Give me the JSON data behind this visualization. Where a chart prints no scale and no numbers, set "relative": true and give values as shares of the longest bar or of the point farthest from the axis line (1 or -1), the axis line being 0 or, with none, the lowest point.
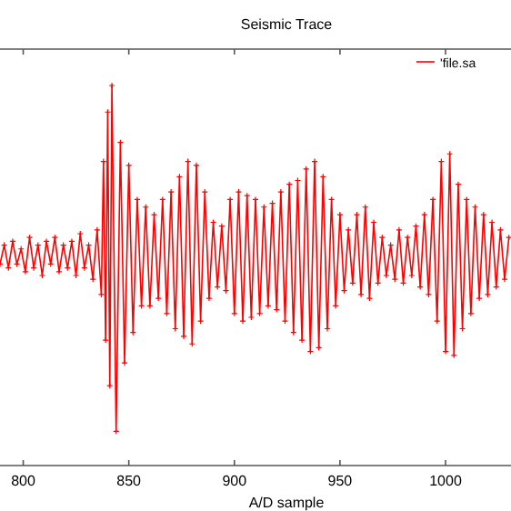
{
  "chart_data": {
    "type": "line",
    "title": "Seismic Trace",
    "xlabel": "A/D sample",
    "relative": true,
    "xlim": [
      789,
      1031
    ],
    "xticks": [
      800,
      850,
      900,
      950,
      1000
    ],
    "legend": "top right",
    "marker": "cross",
    "line_style": "solid",
    "grid": false,
    "tick_labels": "x",
    "series": [
      {
        "name": "'file.sa",
        "color": "#ff0000",
        "x": [
          789,
          791,
          793,
          795,
          797,
          799,
          801,
          803,
          805,
          807,
          809,
          811,
          813,
          815,
          817,
          819,
          821,
          823,
          825,
          827,
          829,
          831,
          833,
          835,
          837,
          838,
          839,
          840,
          841,
          842,
          844,
          846,
          848,
          850,
          852,
          854,
          856,
          858,
          860,
          862,
          864,
          866,
          868,
          870,
          872,
          874,
          876,
          878,
          880,
          882,
          884,
          886,
          888,
          890,
          892,
          894,
          896,
          898,
          900,
          902,
          904,
          906,
          908,
          910,
          912,
          914,
          916,
          918,
          920,
          922,
          924,
          926,
          928,
          930,
          932,
          934,
          936,
          938,
          940,
          942,
          944,
          946,
          948,
          950,
          952,
          954,
          956,
          958,
          960,
          962,
          964,
          966,
          968,
          970,
          972,
          974,
          976,
          978,
          980,
          982,
          984,
          986,
          988,
          990,
          992,
          994,
          996,
          998,
          1000,
          1002,
          1004,
          1006,
          1008,
          1010,
          1012,
          1014,
          1016,
          1018,
          1020,
          1022,
          1024,
          1026,
          1028,
          1030
        ],
        "values": [
          0.53,
          0.58,
          0.52,
          0.59,
          0.53,
          0.57,
          0.51,
          0.6,
          0.52,
          0.58,
          0.5,
          0.59,
          0.53,
          0.6,
          0.51,
          0.58,
          0.52,
          0.59,
          0.5,
          0.61,
          0.52,
          0.58,
          0.49,
          0.62,
          0.45,
          0.8,
          0.33,
          0.93,
          0.21,
          1.0,
          0.09,
          0.85,
          0.27,
          0.79,
          0.35,
          0.7,
          0.42,
          0.68,
          0.42,
          0.66,
          0.44,
          0.7,
          0.4,
          0.72,
          0.36,
          0.76,
          0.34,
          0.8,
          0.32,
          0.79,
          0.38,
          0.72,
          0.44,
          0.64,
          0.47,
          0.63,
          0.46,
          0.7,
          0.4,
          0.72,
          0.38,
          0.71,
          0.39,
          0.7,
          0.4,
          0.68,
          0.42,
          0.69,
          0.41,
          0.72,
          0.38,
          0.74,
          0.35,
          0.75,
          0.33,
          0.78,
          0.3,
          0.8,
          0.31,
          0.76,
          0.36,
          0.7,
          0.42,
          0.66,
          0.46,
          0.62,
          0.48,
          0.66,
          0.45,
          0.68,
          0.44,
          0.64,
          0.48,
          0.6,
          0.5,
          0.58,
          0.49,
          0.62,
          0.48,
          0.6,
          0.5,
          0.63,
          0.47,
          0.66,
          0.45,
          0.7,
          0.38,
          0.8,
          0.3,
          0.82,
          0.29,
          0.74,
          0.36,
          0.7,
          0.4,
          0.68,
          0.44,
          0.66,
          0.45,
          0.64,
          0.47,
          0.62,
          0.49,
          0.6
        ]
      }
    ]
  }
}
